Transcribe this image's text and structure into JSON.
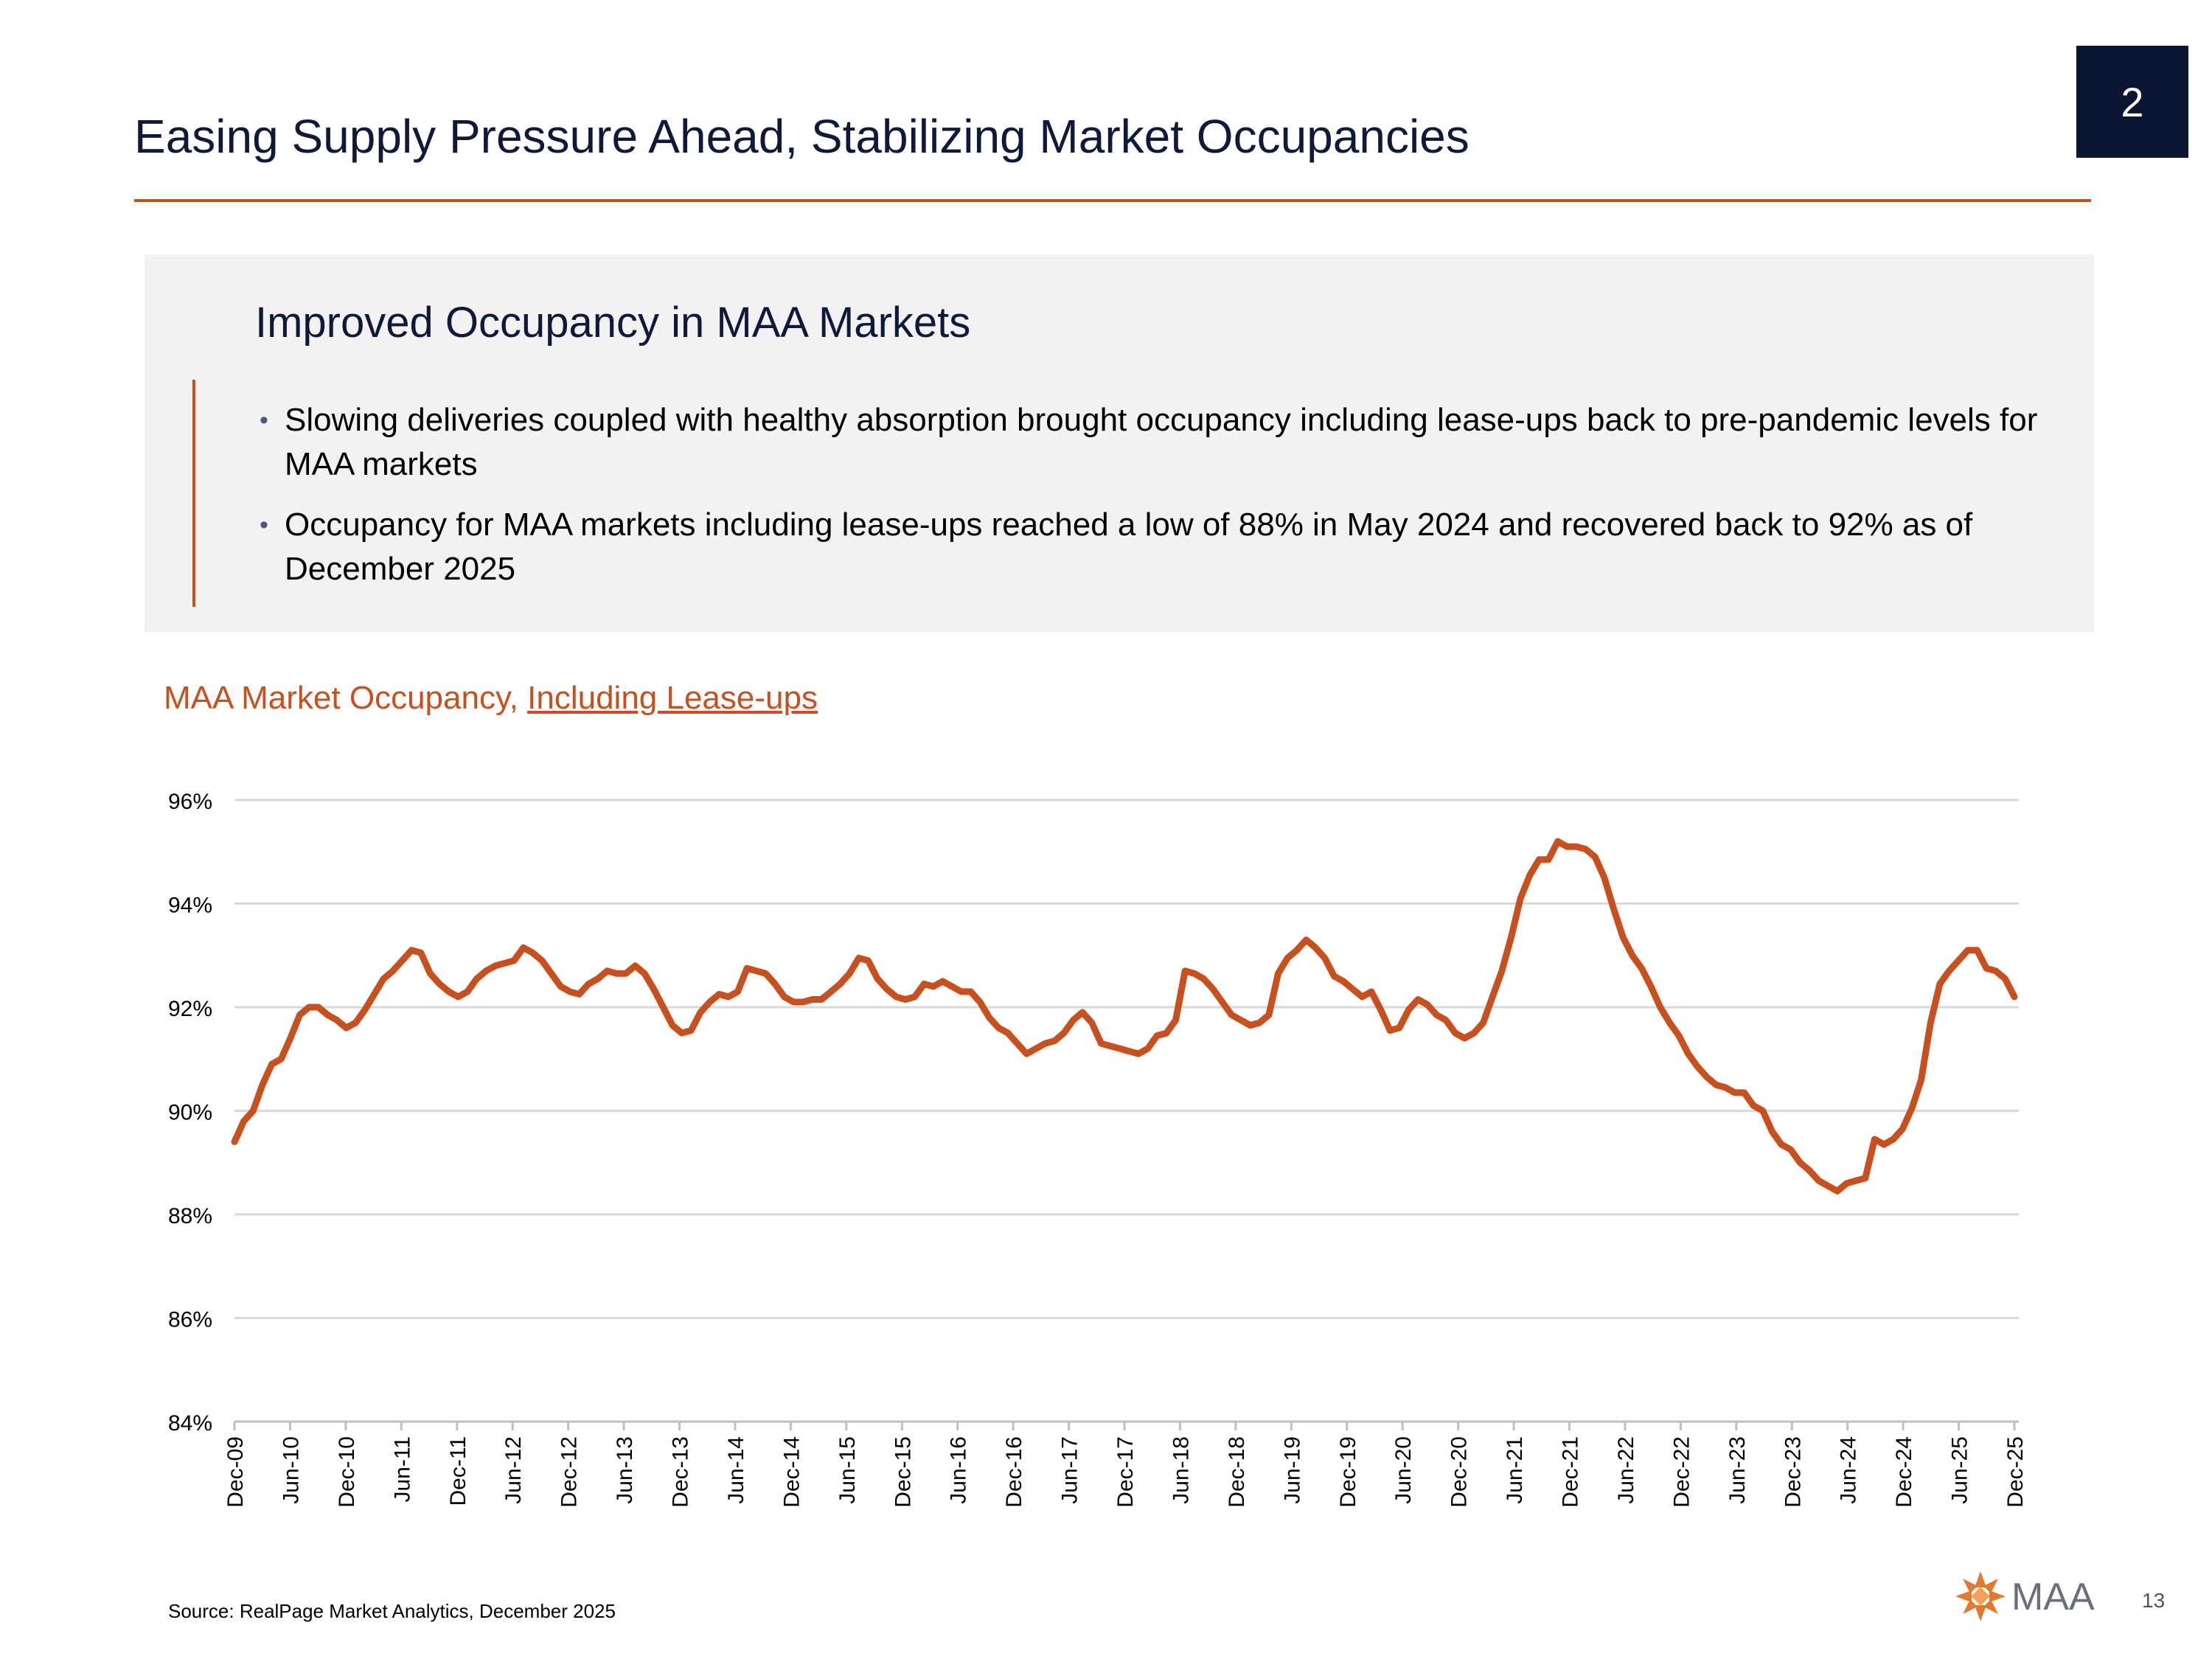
{
  "slide": {
    "section_number": "2",
    "title": "Easing Supply Pressure Ahead, Stabilizing Market Occupancies",
    "page_number": "13",
    "source": "Source: RealPage Market Analytics, December 2025",
    "logo_text": "MAA"
  },
  "summary": {
    "heading": "Improved Occupancy in MAA Markets",
    "bullets": [
      "Slowing deliveries coupled with healthy absorption brought occupancy including lease-ups back to pre-pandemic levels for MAA markets",
      "Occupancy for MAA markets including lease-ups reached a low of 88% in May 2024 and recovered back to 92% as of December 2025"
    ]
  },
  "chart_title": {
    "part1": "MAA Market Occupancy, ",
    "part2": "Including Lease-ups"
  },
  "colors": {
    "accent": "#c8501f",
    "navy": "#0c1633",
    "panel": "#f2f2f2",
    "grid": "#d9d9d9"
  },
  "chart_data": {
    "type": "line",
    "title": "MAA Market Occupancy, Including Lease-ups",
    "xlabel": "",
    "ylabel": "",
    "ylim": [
      84,
      96
    ],
    "yticks": [
      "84%",
      "86%",
      "88%",
      "90%",
      "92%",
      "94%",
      "96%"
    ],
    "y_tick_values": [
      84,
      86,
      88,
      90,
      92,
      94,
      96
    ],
    "x_tick_labels": [
      "Dec-09",
      "Jun-10",
      "Dec-10",
      "Jun-11",
      "Dec-11",
      "Jun-12",
      "Dec-12",
      "Jun-13",
      "Dec-13",
      "Jun-14",
      "Dec-14",
      "Jun-15",
      "Dec-15",
      "Jun-16",
      "Dec-16",
      "Jun-17",
      "Dec-17",
      "Jun-18",
      "Dec-18",
      "Jun-19",
      "Dec-19",
      "Jun-20",
      "Dec-20",
      "Jun-21",
      "Dec-21",
      "Jun-22",
      "Dec-22",
      "Jun-23",
      "Dec-23",
      "Jun-24",
      "Dec-24",
      "Jun-25",
      "Dec-25"
    ],
    "grid": true,
    "legend": "none",
    "series": [
      {
        "color": "#c8501f",
        "start": "Dec-09",
        "frequency": "monthly",
        "values": [
          89.4,
          89.8,
          90.0,
          90.5,
          90.9,
          91.0,
          91.4,
          91.85,
          92.0,
          92.0,
          91.85,
          91.75,
          91.6,
          91.7,
          91.95,
          92.25,
          92.55,
          92.7,
          92.9,
          93.1,
          93.05,
          92.65,
          92.45,
          92.3,
          92.2,
          92.3,
          92.55,
          92.7,
          92.8,
          92.85,
          92.9,
          93.15,
          93.05,
          92.9,
          92.65,
          92.4,
          92.3,
          92.25,
          92.45,
          92.55,
          92.7,
          92.65,
          92.65,
          92.8,
          92.65,
          92.35,
          92.0,
          91.65,
          91.5,
          91.55,
          91.9,
          92.1,
          92.25,
          92.2,
          92.3,
          92.75,
          92.7,
          92.65,
          92.45,
          92.2,
          92.1,
          92.1,
          92.15,
          92.15,
          92.3,
          92.45,
          92.65,
          92.95,
          92.9,
          92.55,
          92.35,
          92.2,
          92.15,
          92.2,
          92.45,
          92.4,
          92.5,
          92.4,
          92.3,
          92.3,
          92.1,
          91.8,
          91.6,
          91.5,
          91.3,
          91.1,
          91.2,
          91.3,
          91.35,
          91.5,
          91.75,
          91.9,
          91.7,
          91.3,
          91.25,
          91.2,
          91.15,
          91.1,
          91.2,
          91.45,
          91.5,
          91.75,
          92.7,
          92.65,
          92.55,
          92.35,
          92.1,
          91.85,
          91.75,
          91.65,
          91.7,
          91.85,
          92.65,
          92.95,
          93.1,
          93.3,
          93.15,
          92.95,
          92.6,
          92.5,
          92.35,
          92.2,
          92.3,
          91.95,
          91.55,
          91.6,
          91.95,
          92.15,
          92.05,
          91.85,
          91.75,
          91.5,
          91.4,
          91.5,
          91.7,
          92.2,
          92.7,
          93.35,
          94.1,
          94.55,
          94.85,
          94.85,
          95.2,
          95.1,
          95.1,
          95.05,
          94.9,
          94.5,
          93.9,
          93.35,
          93.0,
          92.75,
          92.4,
          92.0,
          91.7,
          91.45,
          91.1,
          90.85,
          90.65,
          90.5,
          90.45,
          90.35,
          90.35,
          90.1,
          90.0,
          89.6,
          89.35,
          89.25,
          89.0,
          88.85,
          88.65,
          88.55,
          88.45,
          88.6,
          88.65,
          88.7,
          89.45,
          89.35,
          89.45,
          89.65,
          90.05,
          90.6,
          91.7,
          92.45,
          92.7,
          92.9,
          93.1,
          93.1,
          92.75,
          92.7,
          92.55,
          92.2
        ]
      }
    ]
  }
}
